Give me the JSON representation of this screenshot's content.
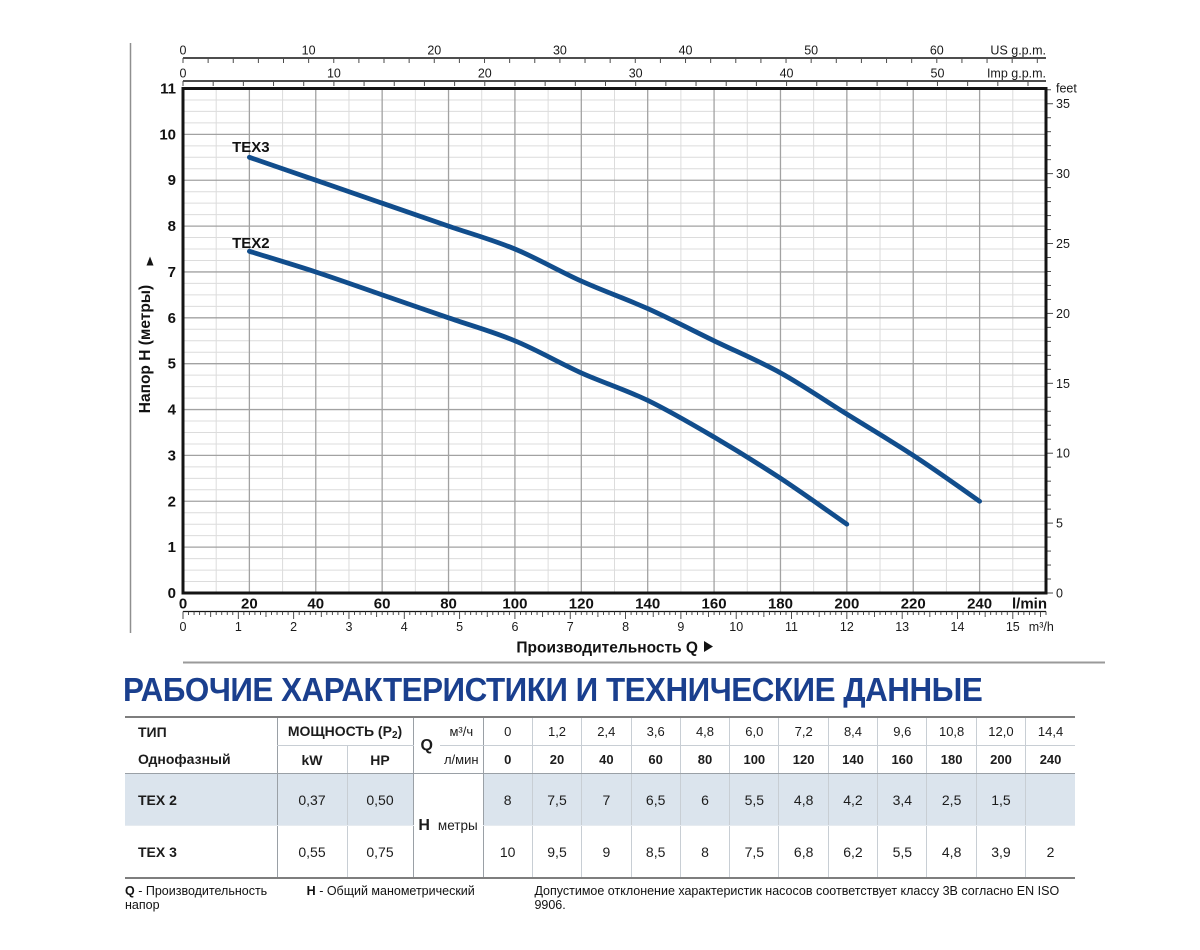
{
  "title": "РАБОЧИЕ ХАРАКТЕРИСТИКИ И ТЕХНИЧЕСКИЕ ДАННЫЕ",
  "chart_data": {
    "type": "line",
    "xlabel": "Производительность Q",
    "curve_color": "#114d8c",
    "grid": "on",
    "x_axes": {
      "l_min": {
        "unit": "l/min",
        "max": 260,
        "label_step": 20,
        "label_max": 240,
        "minor_step": 10
      },
      "m3_h": {
        "unit": "m³/h",
        "max": 15.6,
        "label_step": 1,
        "label_max": 15,
        "minor_step": 0.1,
        "lmin_per_unit": 16.6667
      },
      "us_gpm": {
        "unit": "US g.p.m.",
        "max": 68,
        "label_step": 10,
        "label_max": 60,
        "minor_step": 2,
        "lmin_per_unit": 3.785
      },
      "imp_gpm": {
        "unit": "Imp g.p.m.",
        "max": 56,
        "label_step": 10,
        "label_max": 50,
        "minor_step": 2,
        "lmin_per_unit": 4.546
      }
    },
    "y_axes": {
      "head_m": {
        "label": "Напор H (метры)",
        "max": 11,
        "label_step": 1,
        "minor_step": 0.25
      },
      "feet": {
        "unit": "feet",
        "max": 36,
        "label_step": 5,
        "label_max": 35,
        "minor_step": 1,
        "m_per_unit": 0.3048
      }
    },
    "series": [
      {
        "name": "TEX3",
        "label_pos": {
          "q": 14.8,
          "h": 9.62
        },
        "points": [
          [
            20,
            9.5
          ],
          [
            40,
            9.0
          ],
          [
            60,
            8.5
          ],
          [
            80,
            8.0
          ],
          [
            100,
            7.5
          ],
          [
            120,
            6.8
          ],
          [
            140,
            6.2
          ],
          [
            160,
            5.5
          ],
          [
            180,
            4.8
          ],
          [
            200,
            3.9
          ],
          [
            220,
            3.0
          ],
          [
            240,
            2.0
          ]
        ]
      },
      {
        "name": "TEX2",
        "label_pos": {
          "q": 14.8,
          "h": 7.52
        },
        "points": [
          [
            20,
            7.45
          ],
          [
            40,
            7.0
          ],
          [
            60,
            6.5
          ],
          [
            80,
            6.0
          ],
          [
            100,
            5.5
          ],
          [
            120,
            4.8
          ],
          [
            140,
            4.2
          ],
          [
            160,
            3.4
          ],
          [
            180,
            2.5
          ],
          [
            200,
            1.5
          ]
        ]
      }
    ]
  },
  "table": {
    "headers": {
      "type_row1": "ТИП",
      "type_row2": "Однофазный",
      "power_pre": "МОЩНОСТЬ (P",
      "power_sub": "2",
      "power_post": ")",
      "kw": "kW",
      "hp": "HP",
      "q": "Q",
      "q_unit1": "м³/ч",
      "q_unit2": "л/мин",
      "h": "H",
      "h_unit": "метры"
    },
    "q_m3h": [
      "0",
      "1,2",
      "2,4",
      "3,6",
      "4,8",
      "6,0",
      "7,2",
      "8,4",
      "9,6",
      "10,8",
      "12,0",
      "14,4"
    ],
    "q_lmin": [
      "0",
      "20",
      "40",
      "60",
      "80",
      "100",
      "120",
      "140",
      "160",
      "180",
      "200",
      "240"
    ],
    "rows": [
      {
        "type": "TEX 2",
        "kw": "0,37",
        "hp": "0,50",
        "highlight": true,
        "h_values": [
          "8",
          "7,5",
          "7",
          "6,5",
          "6",
          "5,5",
          "4,8",
          "4,2",
          "3,4",
          "2,5",
          "1,5",
          ""
        ]
      },
      {
        "type": "TEX 3",
        "kw": "0,55",
        "hp": "0,75",
        "highlight": false,
        "h_values": [
          "10",
          "9,5",
          "9",
          "8,5",
          "8",
          "7,5",
          "6,8",
          "6,2",
          "5,5",
          "4,8",
          "3,9",
          "2"
        ]
      }
    ]
  },
  "footnote": {
    "q_symbol": "Q",
    "q_text": "- Производительность",
    "h_symbol": "H",
    "h_text": "- Общий манометрический напор",
    "tolerance": "Допустимое отклонение характеристик насосов соответствует классу 3B согласно EN ISO 9906."
  }
}
